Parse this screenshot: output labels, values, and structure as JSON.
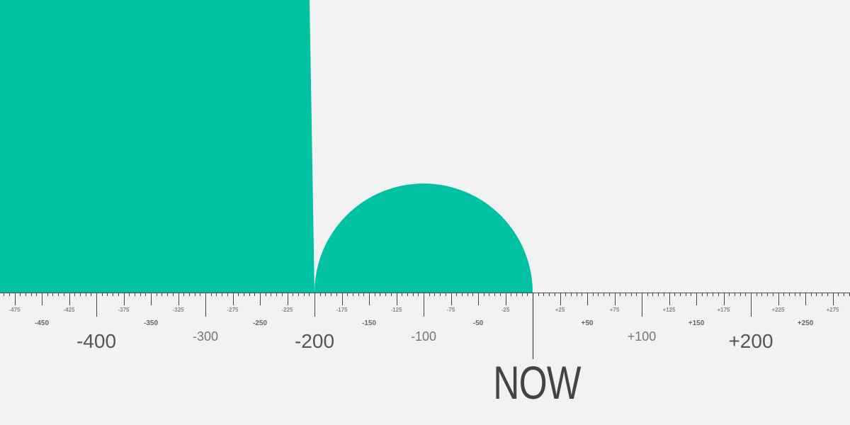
{
  "chart_data": {
    "type": "timeline",
    "axis": {
      "min": -500,
      "max": 295,
      "now_label": "NOW",
      "minor_tick_step": 5
    },
    "tick_labels": {
      "major": [
        "-400",
        "-200",
        "+200"
      ],
      "hundreds": [
        "-300",
        "-100",
        "+100"
      ],
      "fifties": [
        "-450",
        "-350",
        "-250",
        "-150",
        "-50",
        "+50",
        "+150",
        "+250"
      ],
      "twentyfives": [
        "-475",
        "-425",
        "-375",
        "-325",
        "-275",
        "-225",
        "-175",
        "-125",
        "-75",
        "-25",
        "+25",
        "+75",
        "+125",
        "+175",
        "+225",
        "+275"
      ]
    },
    "shapes": [
      {
        "name": "large-block",
        "from": -500,
        "to": -200
      },
      {
        "name": "semicircle",
        "from": -200,
        "to": 0
      }
    ]
  },
  "colors": {
    "accent": "#00c2a2",
    "axis": "#444444",
    "background": "#f2f2f2"
  }
}
